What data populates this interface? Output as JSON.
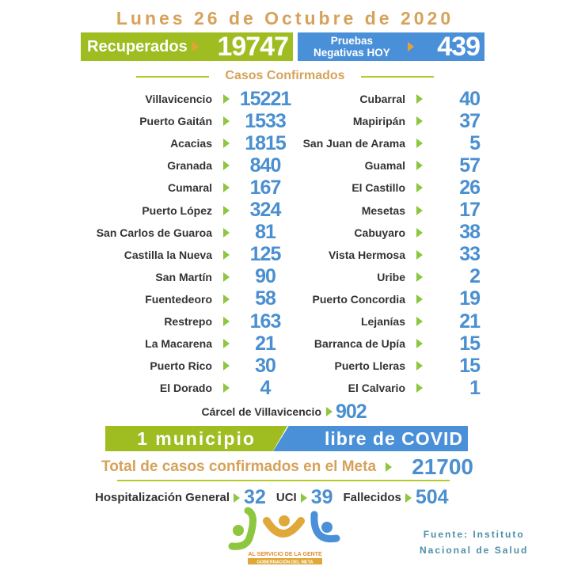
{
  "date": "Lunes 26 de Octubre de 2020",
  "recuperados": {
    "label": "Recuperados",
    "value": "19747"
  },
  "pruebas": {
    "label_line1": "Pruebas",
    "label_line2": "Negativas HOY",
    "value": "439"
  },
  "section_title": "Casos Confirmados",
  "left": [
    {
      "name": "Villavicencio",
      "value": "15221"
    },
    {
      "name": "Puerto Gaitán",
      "value": "1533"
    },
    {
      "name": "Acacias",
      "value": "1815"
    },
    {
      "name": "Granada",
      "value": "840"
    },
    {
      "name": "Cumaral",
      "value": "167"
    },
    {
      "name": "Puerto López",
      "value": "324"
    },
    {
      "name": "San Carlos de Guaroa",
      "value": "81"
    },
    {
      "name": "Castilla la Nueva",
      "value": "125"
    },
    {
      "name": "San Martín",
      "value": "90"
    },
    {
      "name": "Fuentedeoro",
      "value": "58"
    },
    {
      "name": "Restrepo",
      "value": "163"
    },
    {
      "name": "La Macarena",
      "value": "21"
    },
    {
      "name": "Puerto Rico",
      "value": "30"
    },
    {
      "name": "El Dorado",
      "value": "4"
    }
  ],
  "right": [
    {
      "name": "Cubarral",
      "value": "40"
    },
    {
      "name": "Mapiripán",
      "value": "37"
    },
    {
      "name": "San Juan de Arama",
      "value": "5"
    },
    {
      "name": "Guamal",
      "value": "57"
    },
    {
      "name": "El Castillo",
      "value": "26"
    },
    {
      "name": "Mesetas",
      "value": "17"
    },
    {
      "name": "Cabuyaro",
      "value": "38"
    },
    {
      "name": "Vista Hermosa",
      "value": "33"
    },
    {
      "name": "Uribe",
      "value": "2"
    },
    {
      "name": "Puerto Concordia",
      "value": "19"
    },
    {
      "name": "Lejanías",
      "value": "21"
    },
    {
      "name": "Barranca de Upía",
      "value": "15"
    },
    {
      "name": "Puerto Lleras",
      "value": "15"
    },
    {
      "name": "El Calvario",
      "value": "1"
    }
  ],
  "carcel": {
    "name": "Cárcel de Villavicencio",
    "value": "902"
  },
  "banner": {
    "left": "1 municipio",
    "right": "libre de COVID"
  },
  "total": {
    "label": "Total de casos confirmados en el Meta",
    "value": "21700"
  },
  "stats": [
    {
      "label": "Hospitalización General",
      "value": "32"
    },
    {
      "label": "UCI",
      "value": "39"
    },
    {
      "label": "Fallecidos",
      "value": "504"
    }
  ],
  "logo": {
    "line1": "AL SERVICIO DE LA GENTE",
    "line2": "GOBERNACIÓN DEL META"
  },
  "source": {
    "line1": "Fuente: Instituto",
    "line2": "Nacional de Salud"
  },
  "colors": {
    "gold": "#d6a25a",
    "green": "#9fbc21",
    "blue": "#4a90d8",
    "number": "#4a8fd0",
    "arrow": "#8dc63f"
  }
}
